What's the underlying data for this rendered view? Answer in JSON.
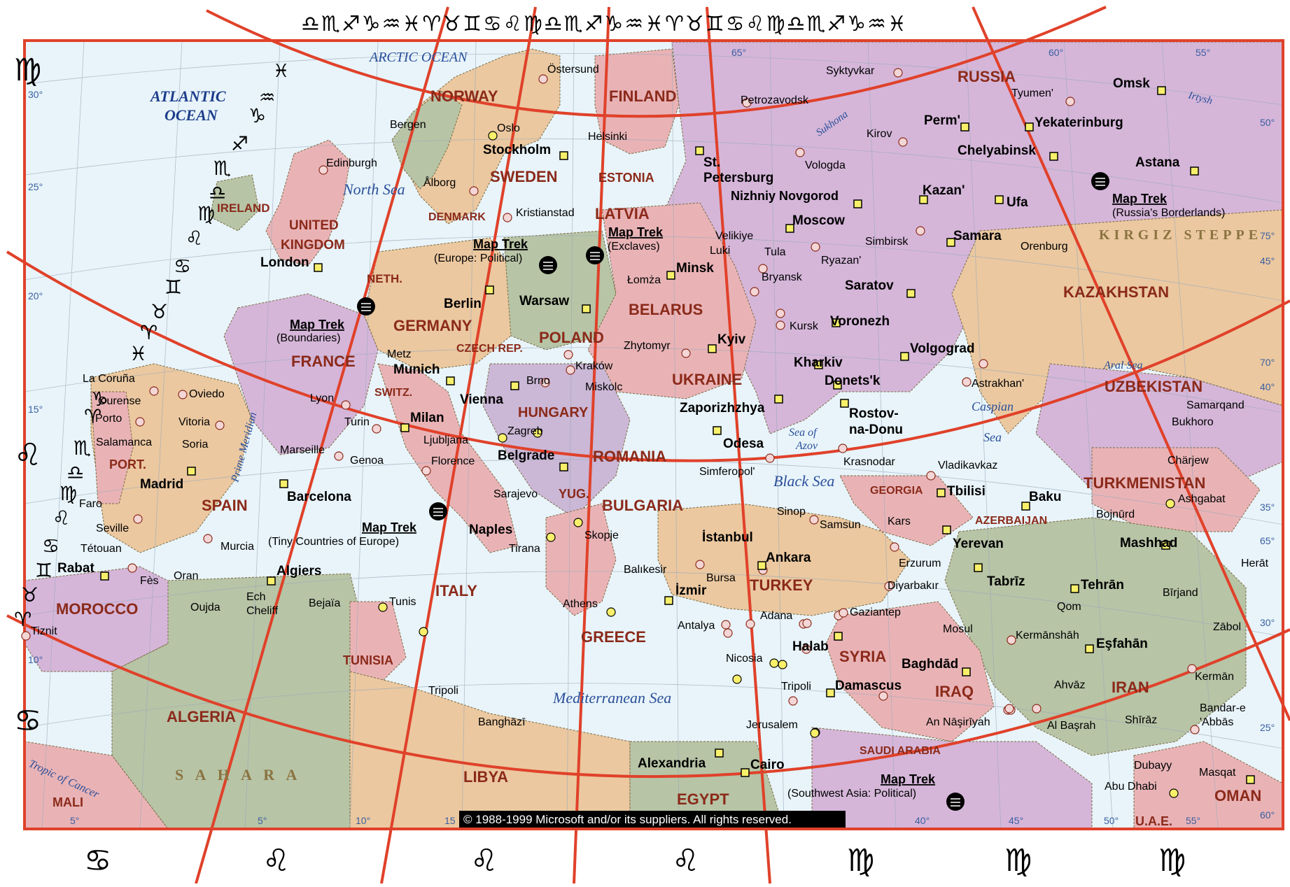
{
  "copyright": "© 1988-1999 Microsoft and/or its suppliers.  All rights reserved.",
  "top_glyph_strip": "♎♏♐♑♒♓♈♉♊♋♌♍♎♏♐♑♒♓♈♉♊♋♌♍♎♏♐♑♒♓",
  "bottom_glyphs": [
    "♋",
    "♌",
    "♌",
    "♌",
    "♍",
    "♍",
    "♍"
  ],
  "left_glyphs": [
    "♍",
    "♓",
    "♒",
    "♑",
    "♐",
    "♏",
    "♎",
    "♍",
    "♌",
    "♋",
    "♊",
    "♉",
    "♈",
    "♓",
    "♌",
    "♑",
    "♈",
    "♏",
    "♎",
    "♍",
    "♌",
    "♋",
    "♊",
    "♉",
    "♈",
    "♋"
  ],
  "oceans": {
    "arctic": "ARCTIC OCEAN",
    "atlantic_1": "ATLANTIC",
    "atlantic_2": "OCEAN"
  },
  "seas": {
    "north": "North Sea",
    "black": "Black Sea",
    "mediterranean": "Mediterranean Sea",
    "azov_1": "Sea of",
    "azov_2": "Azov",
    "caspian_1": "Caspian",
    "caspian_2": "Sea",
    "aral": "Aral Sea",
    "prime_meridian": "Prime Meridian",
    "tropic": "Tropic of Cancer",
    "sukhona": "Sukhona",
    "irtysh": "Irtysh"
  },
  "regions": {
    "sahara": "S A H A R A",
    "kirgiz": "KIRGIZ STEPPE"
  },
  "countries": {
    "norway": "NORWAY",
    "finland": "FINLAND",
    "russia": "RUSSIA",
    "sweden": "SWEDEN",
    "estonia": "ESTONIA",
    "latvia": "LATVIA",
    "denmark": "DENMARK",
    "ireland": "IRELAND",
    "uk_1": "UNITED",
    "uk_2": "KINGDOM",
    "neth": "NETH.",
    "germany": "GERMANY",
    "poland": "POLAND",
    "belarus": "BELARUS",
    "czech": "CZECH REP.",
    "france": "FRANCE",
    "ukraine": "UKRAINE",
    "switz": "SWITZ.",
    "hungary": "HUNGARY",
    "romania": "ROMANIA",
    "port": "PORT.",
    "spain": "SPAIN",
    "yug": "YUG.",
    "bulgaria": "BULGARIA",
    "italy": "ITALY",
    "greece": "GREECE",
    "turkey": "TURKEY",
    "georgia": "GEORGIA",
    "azerbaijan": "AZERBAIJAN",
    "kazakhstan": "KAZAKHSTAN",
    "uzbekistan": "UZBEKISTAN",
    "turkmenistan": "TURKMENISTAN",
    "syria": "SYRIA",
    "iraq": "IRAQ",
    "iran": "IRAN",
    "morocco": "MOROCCO",
    "algeria": "ALGERIA",
    "tunisia": "TUNISIA",
    "libya": "LIBYA",
    "egypt": "EGYPT",
    "saudi": "SAUDI ARABIA",
    "oman": "OMAN",
    "uae": "U.A.E.",
    "mali": "MALI"
  },
  "cities": {
    "ostersund": "Östersund",
    "bergen": "Bergen",
    "oslo": "Oslo",
    "stockholm": "Stockholm",
    "helsinki": "Helsinki",
    "petrozavodsk": "Petrozavodsk",
    "syktyvkar": "Syktyvkar",
    "tyumen": "Tyumen'",
    "omsk": "Omsk",
    "perm": "Perm'",
    "kirov": "Kirov",
    "yekaterinburg": "Yekaterinburg",
    "chelyabinsk": "Chelyabinsk",
    "astana": "Astana",
    "edinburgh": "Edinburgh",
    "alborg": "Ålborg",
    "st_1": "St.",
    "st_2": "Petersburg",
    "vologda": "Vologda",
    "nizhniy": "Nizhniy Novgorod",
    "kazan": "Kazan'",
    "ufa": "Ufa",
    "kristianstad": "Kristianstad",
    "moscow": "Moscow",
    "velikiye_1": "Velikiye",
    "velikiye_2": "Luki",
    "simbirsk": "Simbirsk",
    "samara": "Samara",
    "orenburg": "Orenburg",
    "london": "London",
    "minsk": "Minsk",
    "lomza": "Łomża",
    "tula": "Tula",
    "ryazan": "Ryazan'",
    "bryansk": "Bryansk",
    "saratov": "Saratov",
    "berlin": "Berlin",
    "warsaw": "Warsaw",
    "kursk": "Kursk",
    "voronezh": "Voronezh",
    "metz": "Metz",
    "zhytomyr": "Zhytomyr",
    "kyiv": "Kyiv",
    "volgograd": "Volgograd",
    "munich": "Munich",
    "krakow": "Kraków",
    "kharkiv": "Kharkiv",
    "brno": "Brno",
    "miskolc": "Miskolc",
    "donetsk": "Donets'k",
    "astrakhan": "Astrakhan'",
    "la_coruna": "La Coruña",
    "oviedo": "Oviedo",
    "ourense": "Ourense",
    "lyon": "Lyon",
    "vienna": "Vienna",
    "zaporizhzhya": "Zaporizhzhya",
    "rostov_1": "Rostov-",
    "rostov_2": "na-Donu",
    "samarqand": "Samarqand",
    "porto": "Porto",
    "vitoria": "Vitoria",
    "turin": "Turin",
    "milan": "Milan",
    "zagreb": "Zagreb",
    "bukhoro": "Bukhoro",
    "salamanca": "Salamanca",
    "soria": "Soria",
    "marseille": "Marseille",
    "genoa": "Genoa",
    "ljubljana": "Ljubljana",
    "odesa": "Odesa",
    "belgrade": "Belgrade",
    "krasnodar": "Krasnodar",
    "vladikavkaz": "Vladikavkaz",
    "charjew": "Chärjew",
    "florence": "Florence",
    "simferopol": "Simferopol'",
    "madrid": "Madrid",
    "barcelona": "Barcelona",
    "sarajevo": "Sarajevo",
    "tbilisi": "Tbilisi",
    "baku": "Baku",
    "ashgabat": "Ashgabat",
    "faro": "Faro",
    "sinop": "Sinop",
    "samsun": "Samsun",
    "kars": "Kars",
    "bojnurd": "Bojnūrd",
    "seville": "Seville",
    "naples": "Naples",
    "istanbul": "İstanbul",
    "yerevan": "Yerevan",
    "mashhad": "Mashhad",
    "tetouan": "Tétouan",
    "murcia": "Murcia",
    "tirana": "Tirana",
    "skopje": "Skopje",
    "ankara": "Ankara",
    "erzurum": "Erzurum",
    "herat": "Herāt",
    "rabat": "Rabat",
    "fes": "Fès",
    "oran": "Oran",
    "algiers": "Algiers",
    "balikesir": "Balıkesir",
    "bursa": "Bursa",
    "izmir": "İzmir",
    "tabriz": "Tabrīz",
    "tehran": "Tehrān",
    "oujda": "Oujda",
    "ech_1": "Ech",
    "ech_2": "Cheliff",
    "bejaia": "Bejaïa",
    "tunis": "Tunis",
    "athens": "Athens",
    "diyarbakir": "Diyarbakır",
    "birjand": "Bīrjand",
    "adana": "Adana",
    "gaziantep": "Gaziantep",
    "qom": "Qom",
    "mosul": "Mosul",
    "zabol": "Zābol",
    "tiznit": "Tiznit",
    "antalya": "Antalya",
    "kermanshah": "Kermānshāh",
    "esfahan": "Eşfahān",
    "halab": "Halab",
    "nicosia": "Nicosia",
    "baghdad": "Baghdād",
    "tripoli_lb": "Tripoli",
    "damascus": "Damascus",
    "tripoli_ly": "Tripoli",
    "ahvaz": "Ahvāz",
    "kerman": "Kermān",
    "banghazi": "Banghāzī",
    "jerusalem": "Jerusalem",
    "an_nasiriyah": "An Nāşirīyah",
    "al_basrah": "Al Başrah",
    "shiraz": "Shīrāz",
    "bandar_1": "Bandar-e",
    "bandar_2": "'Abbās",
    "alexandria": "Alexandria",
    "cairo": "Cairo",
    "dubayy": "Dubayy",
    "masqat": "Masqat",
    "abu_dhabi": "Abu Dhabi"
  },
  "map_treks": [
    {
      "title": "Map Trek",
      "subtitle": "(Europe: Political)"
    },
    {
      "title": "Map Trek",
      "subtitle": "(Exclaves)"
    },
    {
      "title": "Map Trek",
      "subtitle": "(Russia's Borderlands)"
    },
    {
      "title": "Map Trek",
      "subtitle": "(Boundaries)"
    },
    {
      "title": "Map Trek",
      "subtitle": "(Tiny Countries of Europe)"
    },
    {
      "title": "Map Trek",
      "subtitle": "(Southwest Asia: Political)"
    }
  ],
  "degree_labels": {
    "left": [
      "30°",
      "25°",
      "20°",
      "15°",
      "10°"
    ],
    "top": [
      "65°",
      "60°",
      "55°"
    ],
    "right": [
      "50°",
      "75°",
      "45°",
      "70°",
      "40°",
      "35°",
      "65°",
      "30°",
      "25°",
      "60°"
    ],
    "bottom": [
      "5°",
      "5°",
      "10°",
      "15",
      "40°",
      "45°",
      "50°",
      "55°"
    ]
  },
  "colors": {
    "water": "#e8f4fa",
    "pink": "#e9b3b6",
    "purple": "#d5b6d9",
    "tan": "#ebc8a0",
    "green": "#b7c4a6",
    "lavender": "#cbb7d6",
    "frame": "#e0412a",
    "grid": "#9aa9b8"
  }
}
